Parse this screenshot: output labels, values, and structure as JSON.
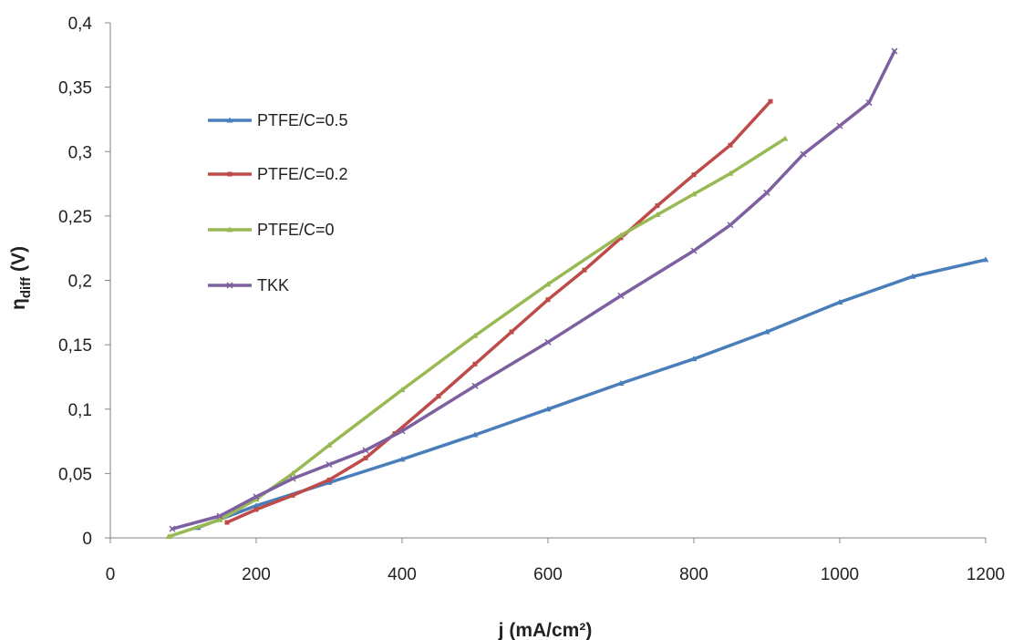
{
  "chart_data": {
    "type": "line",
    "title": "",
    "xlabel": "j (mA/cm²)",
    "ylabel": "ηdiff (V)",
    "ylabel_main": "η",
    "ylabel_sub": "diff",
    "ylabel_unit": " (V)",
    "xlim": [
      0,
      1200
    ],
    "ylim": [
      0,
      0.4
    ],
    "x_ticks": [
      0,
      200,
      400,
      600,
      800,
      1000,
      1200
    ],
    "x_tick_labels": [
      "0",
      "200",
      "400",
      "600",
      "800",
      "1000",
      "1200"
    ],
    "y_ticks": [
      0,
      0.05,
      0.1,
      0.15,
      0.2,
      0.25,
      0.3,
      0.35,
      0.4
    ],
    "y_tick_labels": [
      "0",
      "0,05",
      "0,1",
      "0,15",
      "0,2",
      "0,25",
      "0,3",
      "0,35",
      "0,4"
    ],
    "grid": false,
    "legend_position": "left",
    "series": [
      {
        "name": "PTFE/C=0.5",
        "color": "#4a7ebb",
        "marker": "triangle",
        "x": [
          120,
          200,
          300,
          400,
          500,
          600,
          700,
          800,
          900,
          1000,
          1100,
          1200
        ],
        "y": [
          0.008,
          0.025,
          0.043,
          0.061,
          0.08,
          0.1,
          0.12,
          0.139,
          0.16,
          0.183,
          0.203,
          0.216
        ]
      },
      {
        "name": "PTFE/C=0.2",
        "color": "#be4b48",
        "marker": "square",
        "x": [
          160,
          200,
          250,
          300,
          350,
          390,
          450,
          500,
          550,
          600,
          650,
          700,
          750,
          800,
          850,
          905
        ],
        "y": [
          0.012,
          0.022,
          0.033,
          0.045,
          0.062,
          0.081,
          0.11,
          0.135,
          0.16,
          0.185,
          0.208,
          0.233,
          0.258,
          0.282,
          0.305,
          0.339
        ]
      },
      {
        "name": "PTFE/C=0",
        "color": "#98b954",
        "marker": "triangle",
        "x": [
          80,
          150,
          200,
          250,
          300,
          400,
          500,
          600,
          700,
          750,
          800,
          850,
          925
        ],
        "y": [
          0.001,
          0.014,
          0.03,
          0.05,
          0.072,
          0.115,
          0.157,
          0.197,
          0.235,
          0.251,
          0.267,
          0.283,
          0.31
        ]
      },
      {
        "name": "TKK",
        "color": "#7d60a0",
        "marker": "x",
        "x": [
          85,
          150,
          200,
          250,
          300,
          350,
          400,
          500,
          600,
          700,
          800,
          850,
          900,
          950,
          1000,
          1040,
          1075
        ],
        "y": [
          0.007,
          0.017,
          0.032,
          0.046,
          0.057,
          0.068,
          0.083,
          0.118,
          0.152,
          0.188,
          0.223,
          0.243,
          0.268,
          0.298,
          0.32,
          0.338,
          0.378
        ]
      }
    ]
  }
}
